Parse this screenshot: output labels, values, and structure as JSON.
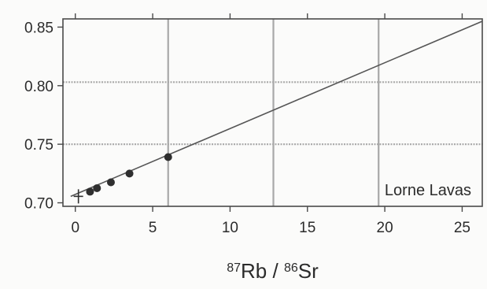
{
  "chart_data": {
    "type": "scatter",
    "annotation": "Lorne Lavas",
    "xlabel": {
      "num_mass": "87",
      "num_element": "Rb",
      "separator": " / ",
      "den_mass": "86",
      "den_element": "Sr"
    },
    "ylabel": "",
    "xlim": [
      -0.8,
      26.3
    ],
    "ylim": [
      0.697,
      0.857
    ],
    "x_ticks": [
      0,
      5,
      10,
      15,
      20,
      25
    ],
    "x_tick_labels": [
      "0",
      "5",
      "10",
      "15",
      "20",
      "25"
    ],
    "y_ticks": [
      0.7,
      0.75,
      0.8,
      0.85
    ],
    "y_tick_labels": [
      "0.70",
      "0.75",
      "0.80",
      "0.85"
    ],
    "vertical_gridlines": [
      6.0,
      12.8,
      19.6
    ],
    "horizontal_gridlines": [
      0.75,
      0.803
    ],
    "points": [
      {
        "x": 0.2,
        "y": 0.7055,
        "marker": "plus"
      },
      {
        "x": 0.95,
        "y": 0.7095,
        "marker": "dot"
      },
      {
        "x": 1.4,
        "y": 0.7125,
        "marker": "dot"
      },
      {
        "x": 2.3,
        "y": 0.7175,
        "marker": "dot"
      },
      {
        "x": 3.5,
        "y": 0.725,
        "marker": "dot"
      },
      {
        "x": 6.0,
        "y": 0.739,
        "marker": "dot"
      }
    ],
    "fit_line": {
      "x_start": -0.3,
      "y_start": 0.7055,
      "x_end": 26.3,
      "y_end": 0.855
    },
    "colors": {
      "background": "#fbfbfa",
      "frame": "#4a4a4a",
      "gridline": "#a8a8a8",
      "points": "#2f2f2f",
      "fit_line": "#555555",
      "text": "#2b2b2b"
    }
  }
}
